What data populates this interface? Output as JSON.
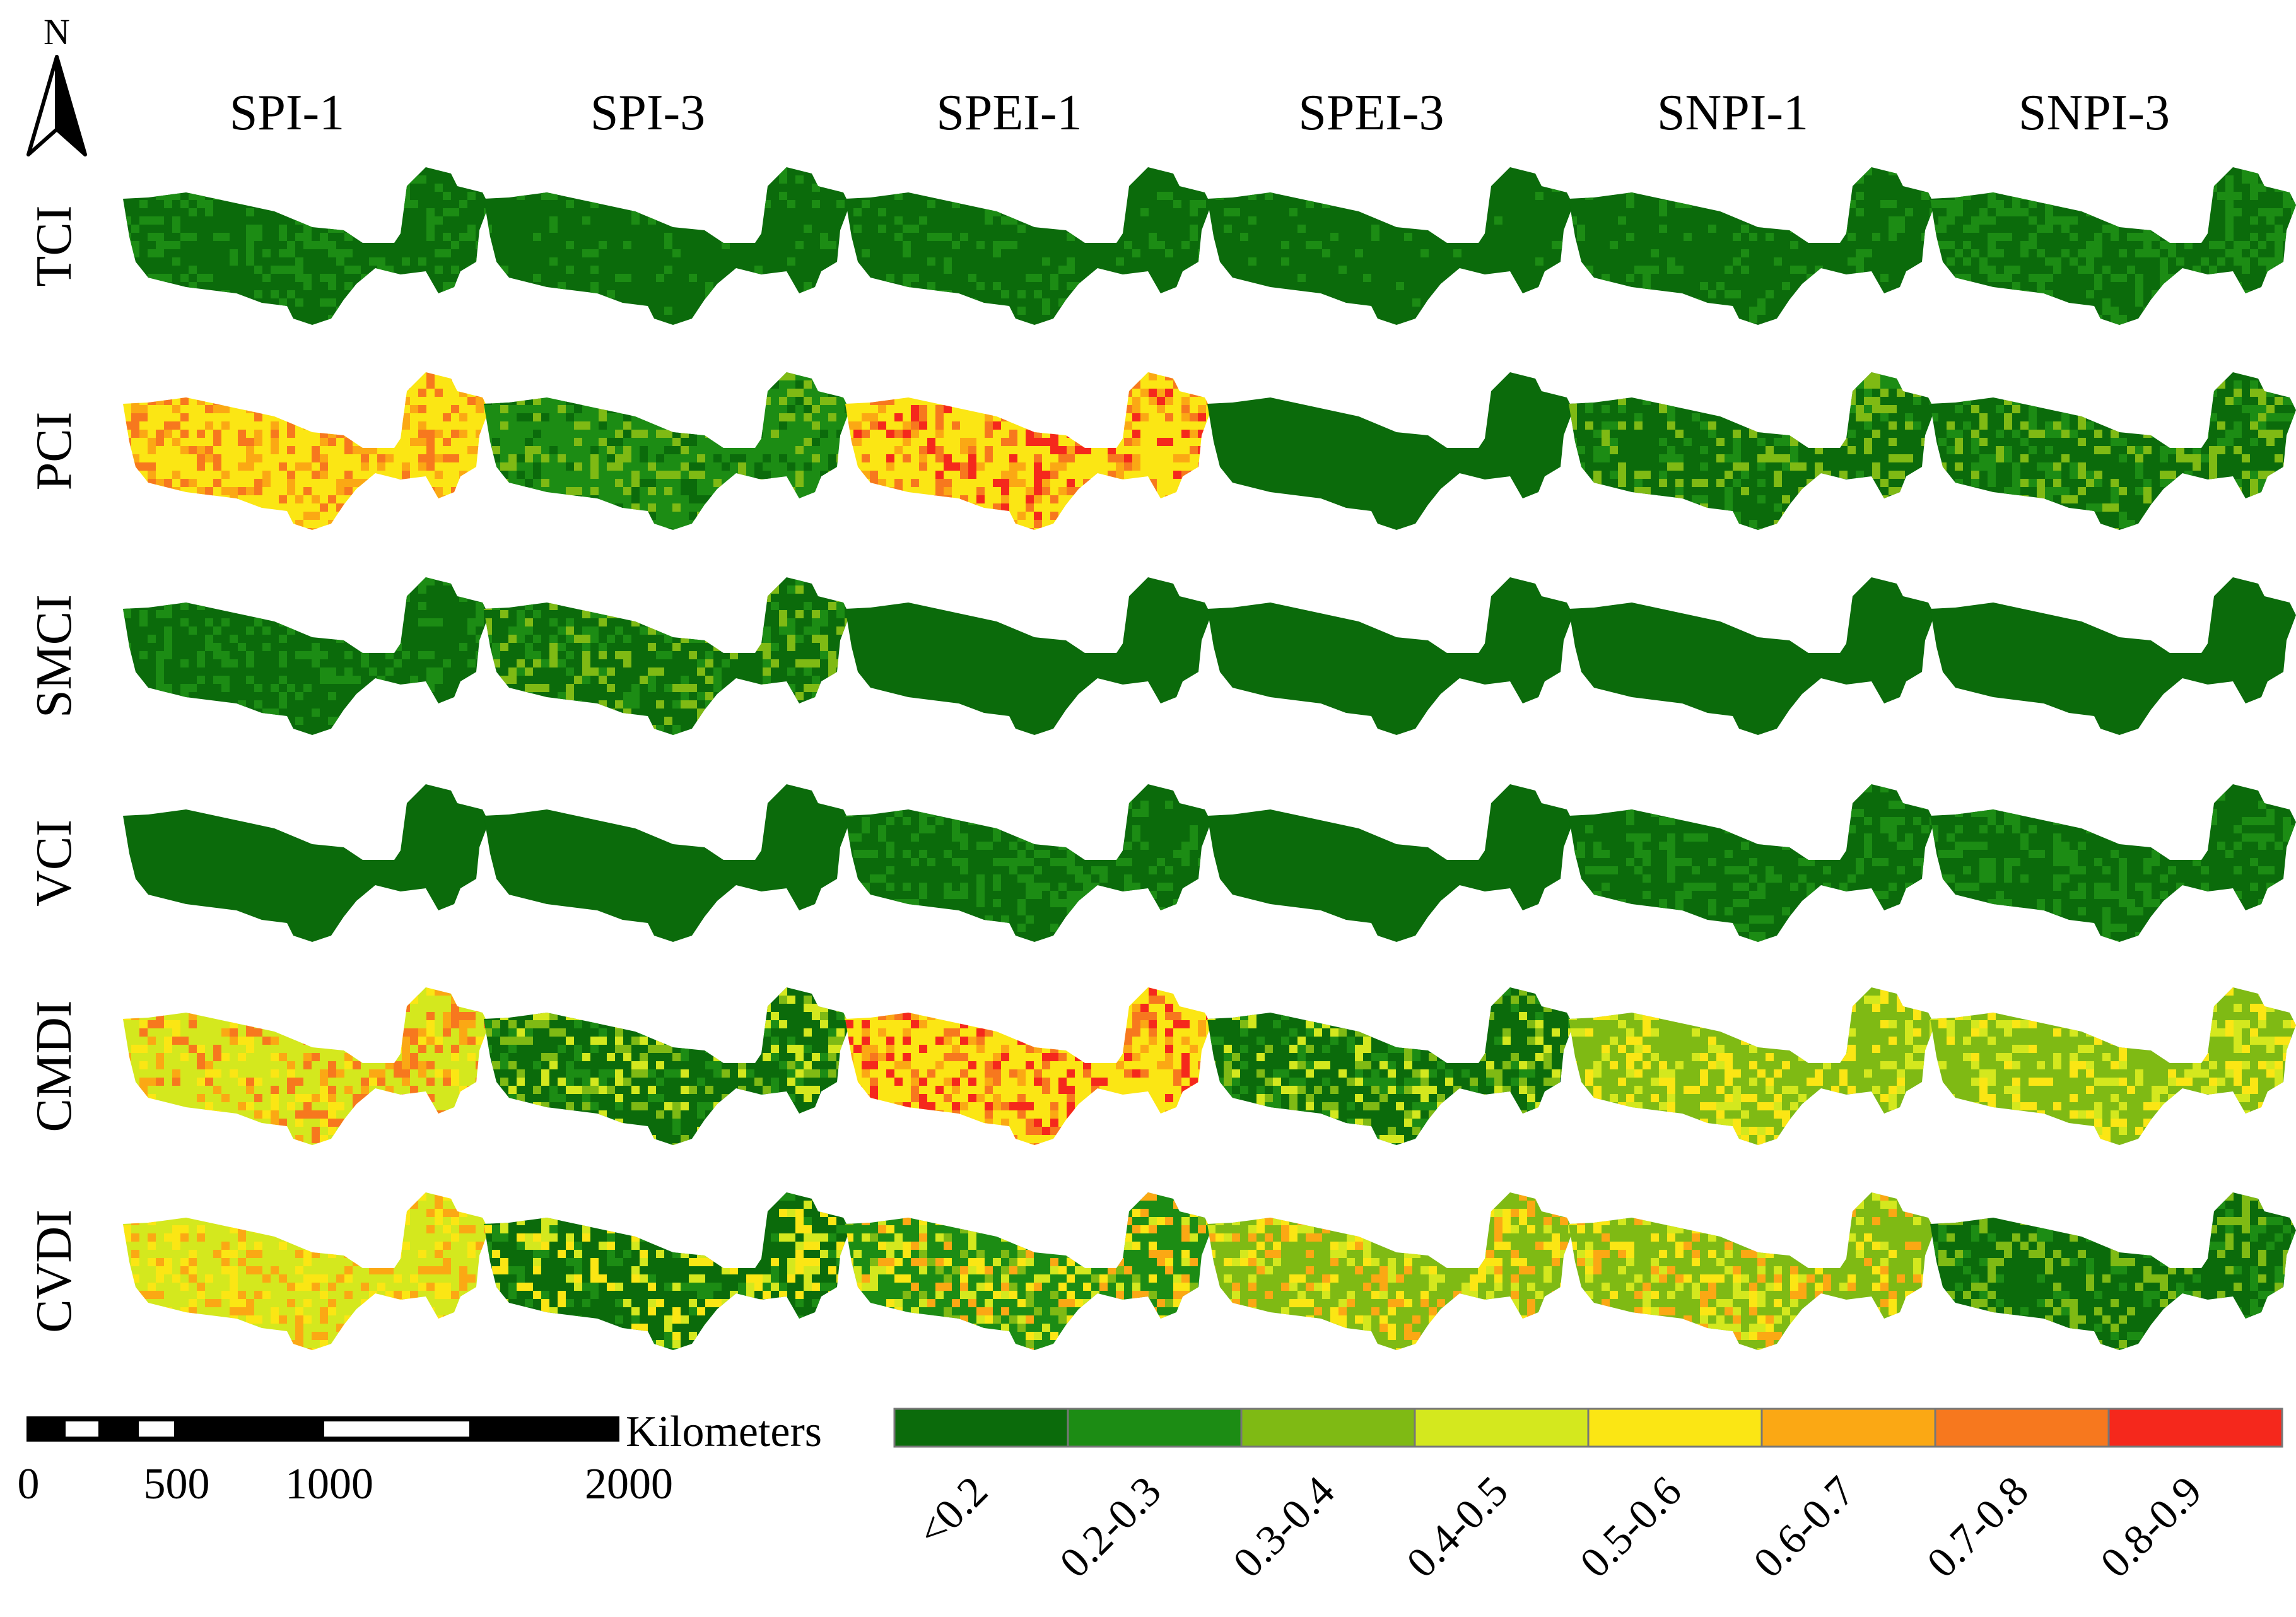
{
  "north_arrow": {
    "label": "N"
  },
  "columns": [
    "SPI-1",
    "SPI-3",
    "SPEI-1",
    "SPEI-3",
    "SNPI-1",
    "SNPI-3"
  ],
  "rows": [
    "TCI",
    "PCI",
    "SMCI",
    "VCI",
    "CMDI",
    "CVDI"
  ],
  "scale_bar": {
    "unit": "Kilometers",
    "ticks": [
      "0",
      "500",
      "1000",
      "2000"
    ]
  },
  "legend": {
    "classes": [
      {
        "label": "<0.2",
        "color": "#0b6b0b"
      },
      {
        "label": "0.2-0.3",
        "color": "#1c8c14"
      },
      {
        "label": "0.3-0.4",
        "color": "#7fba14"
      },
      {
        "label": "0.4-0.5",
        "color": "#d4e81e"
      },
      {
        "label": "0.5-0.6",
        "color": "#fbe614"
      },
      {
        "label": "0.6-0.7",
        "color": "#fba814"
      },
      {
        "label": "0.7-0.8",
        "color": "#f7781e"
      },
      {
        "label": "0.8-0.9",
        "color": "#f5281c"
      }
    ]
  },
  "panel_palettes": [
    [
      [
        0,
        0,
        0,
        1,
        1,
        1
      ],
      [
        0,
        0,
        0,
        0,
        0,
        1
      ],
      [
        0,
        0,
        0,
        0,
        1,
        1
      ],
      [
        0,
        0,
        0,
        0,
        1,
        0
      ],
      [
        0,
        0,
        0,
        0,
        1,
        1
      ],
      [
        0,
        0,
        1,
        1,
        1,
        1
      ]
    ],
    [
      [
        4,
        5,
        6
      ],
      [
        1,
        2,
        0
      ],
      [
        4,
        5,
        6,
        7
      ],
      [
        0
      ],
      [
        0,
        1,
        2
      ],
      [
        0,
        1,
        2
      ]
    ],
    [
      [
        0,
        1
      ],
      [
        0,
        1,
        2
      ],
      [
        0
      ],
      [
        0
      ],
      [
        0
      ],
      [
        0
      ]
    ],
    [
      [
        0
      ],
      [
        0
      ],
      [
        0,
        1
      ],
      [
        0
      ],
      [
        0,
        1
      ],
      [
        0,
        1
      ]
    ],
    [
      [
        3,
        4,
        5,
        6
      ],
      [
        0,
        1,
        2,
        3
      ],
      [
        4,
        5,
        6,
        7
      ],
      [
        0,
        1,
        2,
        3
      ],
      [
        2,
        3,
        4
      ],
      [
        2,
        3,
        4
      ]
    ],
    [
      [
        3,
        4,
        5
      ],
      [
        0,
        1,
        3,
        4
      ],
      [
        1,
        2,
        3,
        4,
        5
      ],
      [
        2,
        3,
        4,
        5
      ],
      [
        2,
        3,
        4,
        5
      ],
      [
        0,
        1,
        2
      ]
    ]
  ]
}
